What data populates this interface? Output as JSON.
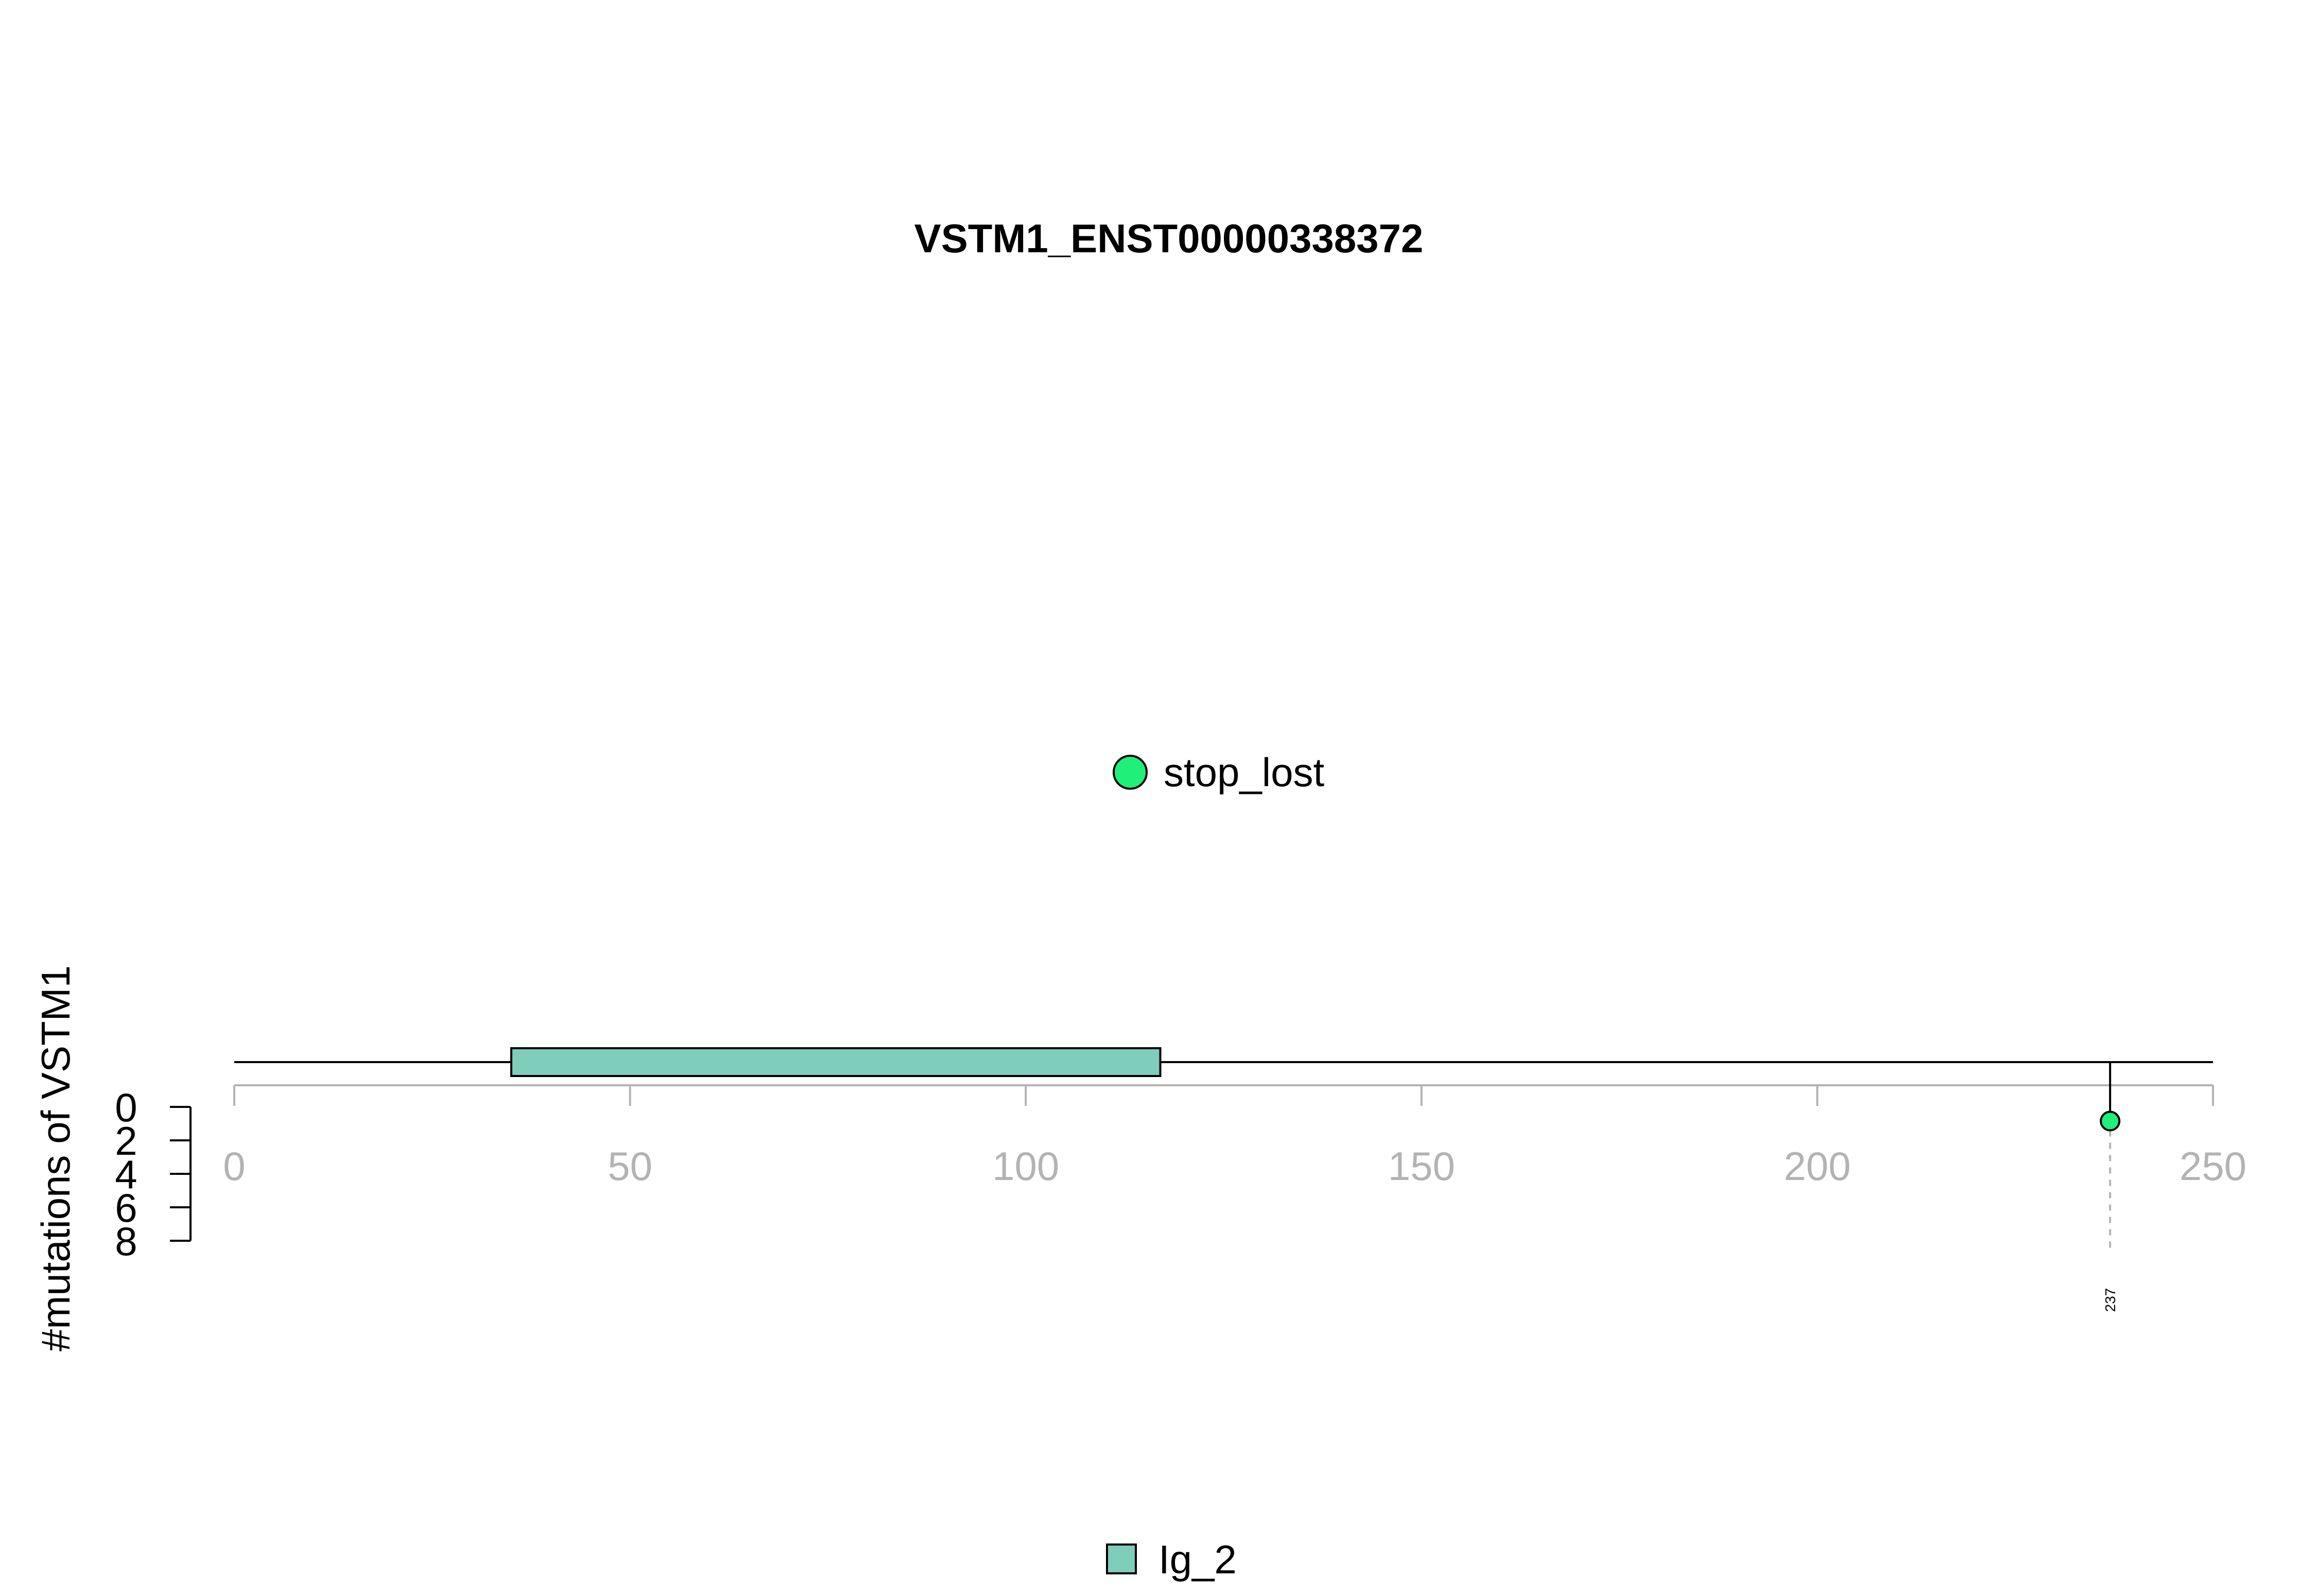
{
  "chart_data": {
    "type": "lollipop",
    "title": "VSTM1_ENST00000338372",
    "ylabel": "#mutations of VSTM1",
    "xlim": [
      0,
      250
    ],
    "x_ticks": [
      0,
      50,
      100,
      150,
      200,
      250
    ],
    "ylim": [
      0,
      8
    ],
    "y_ticks": [
      0,
      2,
      4,
      6,
      8
    ],
    "protein_length": 250,
    "domains": [
      {
        "name": "Ig_2",
        "start": 35,
        "end": 117,
        "color": "#7fcdbb"
      }
    ],
    "mutations": [
      {
        "position": 237,
        "count": 1,
        "type": "stop_lost",
        "label": "237",
        "color": "#1ef07a"
      }
    ],
    "mutation_legend": [
      {
        "label": "stop_lost",
        "color": "#1ef07a"
      }
    ],
    "domain_legend": [
      {
        "label": "Ig_2",
        "color": "#7fcdbb"
      }
    ]
  }
}
